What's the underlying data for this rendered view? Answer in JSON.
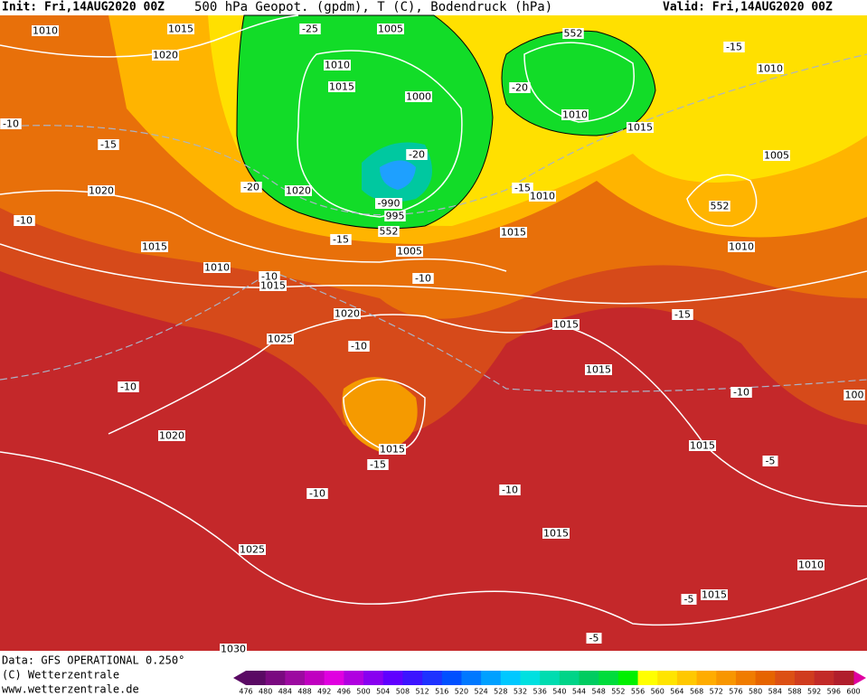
{
  "header": {
    "init": "Init: Fri,14AUG2020 00Z",
    "title": "500 hPa Geopot. (gpdm), T (C), Bodendruck (hPa)",
    "valid": "Valid: Fri,14AUG2020 00Z"
  },
  "footer": {
    "data": "Data: GFS OPERATIONAL 0.250°",
    "copyright": "(C) Wetterzentrale",
    "url": "www.wetterzentrale.de"
  },
  "map": {
    "contour_labels": [
      "1010",
      "1015",
      "-25",
      "1005",
      "552",
      "1020",
      "1010",
      "1015",
      "1000",
      "-20",
      "1010",
      "1015",
      "-15",
      "1010",
      "-10",
      "-15",
      "-20",
      "1005",
      "1020",
      "-20",
      "1020",
      "-990",
      "995",
      "-15",
      "1010",
      "552",
      "-10",
      "552",
      "-15",
      "1005",
      "1015",
      "1015",
      "1010",
      "1010",
      "-10",
      "1015",
      "-10",
      "1020",
      "1015",
      "-15",
      "1025",
      "-10",
      "1015",
      "-10",
      "-10",
      "100",
      "1020",
      "1015",
      "-15",
      "1015",
      "-5",
      "-10",
      "-10",
      "1015",
      "1025",
      "1010",
      "-5",
      "1015",
      "-5",
      "1030"
    ]
  },
  "legend": {
    "labels": [
      476,
      480,
      484,
      488,
      492,
      496,
      500,
      504,
      508,
      512,
      516,
      520,
      524,
      528,
      532,
      536,
      540,
      544,
      548,
      552,
      556,
      560,
      564,
      568,
      572,
      576,
      580,
      584,
      588,
      592,
      596,
      600
    ],
    "colors": [
      "#5a0a64",
      "#7a0a80",
      "#9c0aa0",
      "#c000c0",
      "#e000e0",
      "#b000e0",
      "#8800f0",
      "#6000ff",
      "#3c14ff",
      "#1e32ff",
      "#0050ff",
      "#0078ff",
      "#00a0ff",
      "#00c8ff",
      "#00e0e0",
      "#00dcb0",
      "#00d488",
      "#00cc60",
      "#00dc3c",
      "#00f000",
      "#ffff00",
      "#ffe400",
      "#ffc800",
      "#ffac00",
      "#f89600",
      "#f07c00",
      "#e66400",
      "#dc5014",
      "#d03c1e",
      "#c22a28",
      "#b01e2c"
    ]
  }
}
